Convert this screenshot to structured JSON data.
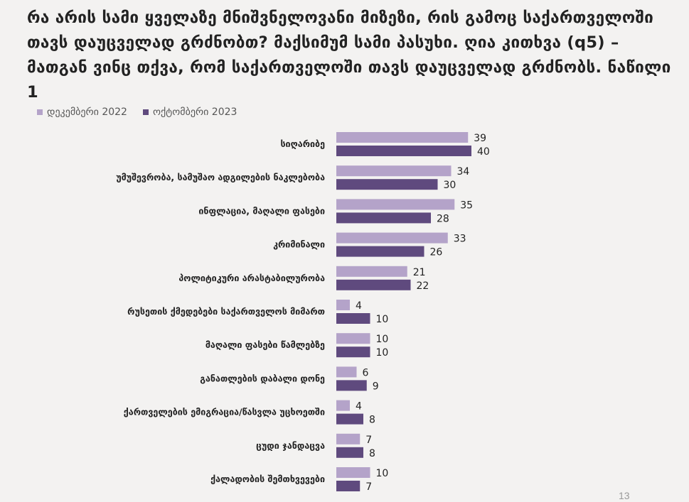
{
  "slide": {
    "title": "რა არის სამი ყველაზე მნიშვნელოვანი მიზეზი, რის გამოც საქართველოში თავს დაუცველად გრძნობთ? მაქსიმუმ სამი პასუხი. ღია კითხვა (q5) – მათგან ვინც თქვა, რომ საქართველოში თავს დაუცველად გრძნობს. ნაწილი 1",
    "page_number": "13"
  },
  "colors": {
    "dec_2022": "#b4a3c9",
    "oct_2023": "#5f4a7e"
  },
  "chart_data": {
    "type": "bar",
    "orientation": "horizontal",
    "title": "რა არის სამი ყველაზე მნიშვნელოვანი მიზეზი, რის გამოც საქართველოში თავს დაუცველად გრძნობთ? მაქსიმუმ სამი პასუხი. ღია კითხვა (q5) – მათგან ვინც თქვა, რომ საქართველოში თავს დაუცველად გრძნობს. ნაწილი 1",
    "categories": [
      "სიღარიბე",
      "უმუშევრობა, სამუშაო ადგილების ნაკლებობა",
      "ინფლაცია, მაღალი ფასები",
      "კრიმინალი",
      "პოლიტიკური არასტაბილურობა",
      "რუსეთის ქმედებები საქართველოს მიმართ",
      "მაღალი ფასები წამლებზე",
      "განათლების დაბალი დონე",
      "ქართველების ემიგრაცია/წასვლა უცხოეთში",
      "ცუდი ჯანდაცვა",
      "ქალადობის შემთხვევები"
    ],
    "series": [
      {
        "name": "დეკემბერი 2022",
        "values": [
          39,
          34,
          35,
          33,
          21,
          4,
          10,
          6,
          4,
          7,
          10
        ]
      },
      {
        "name": "ოქტომბერი 2023",
        "values": [
          40,
          30,
          28,
          26,
          22,
          10,
          10,
          9,
          8,
          8,
          7
        ]
      }
    ],
    "legend_position": "top-left",
    "grid": false,
    "axis_visible": false,
    "xlim": [
      0,
      100
    ]
  }
}
